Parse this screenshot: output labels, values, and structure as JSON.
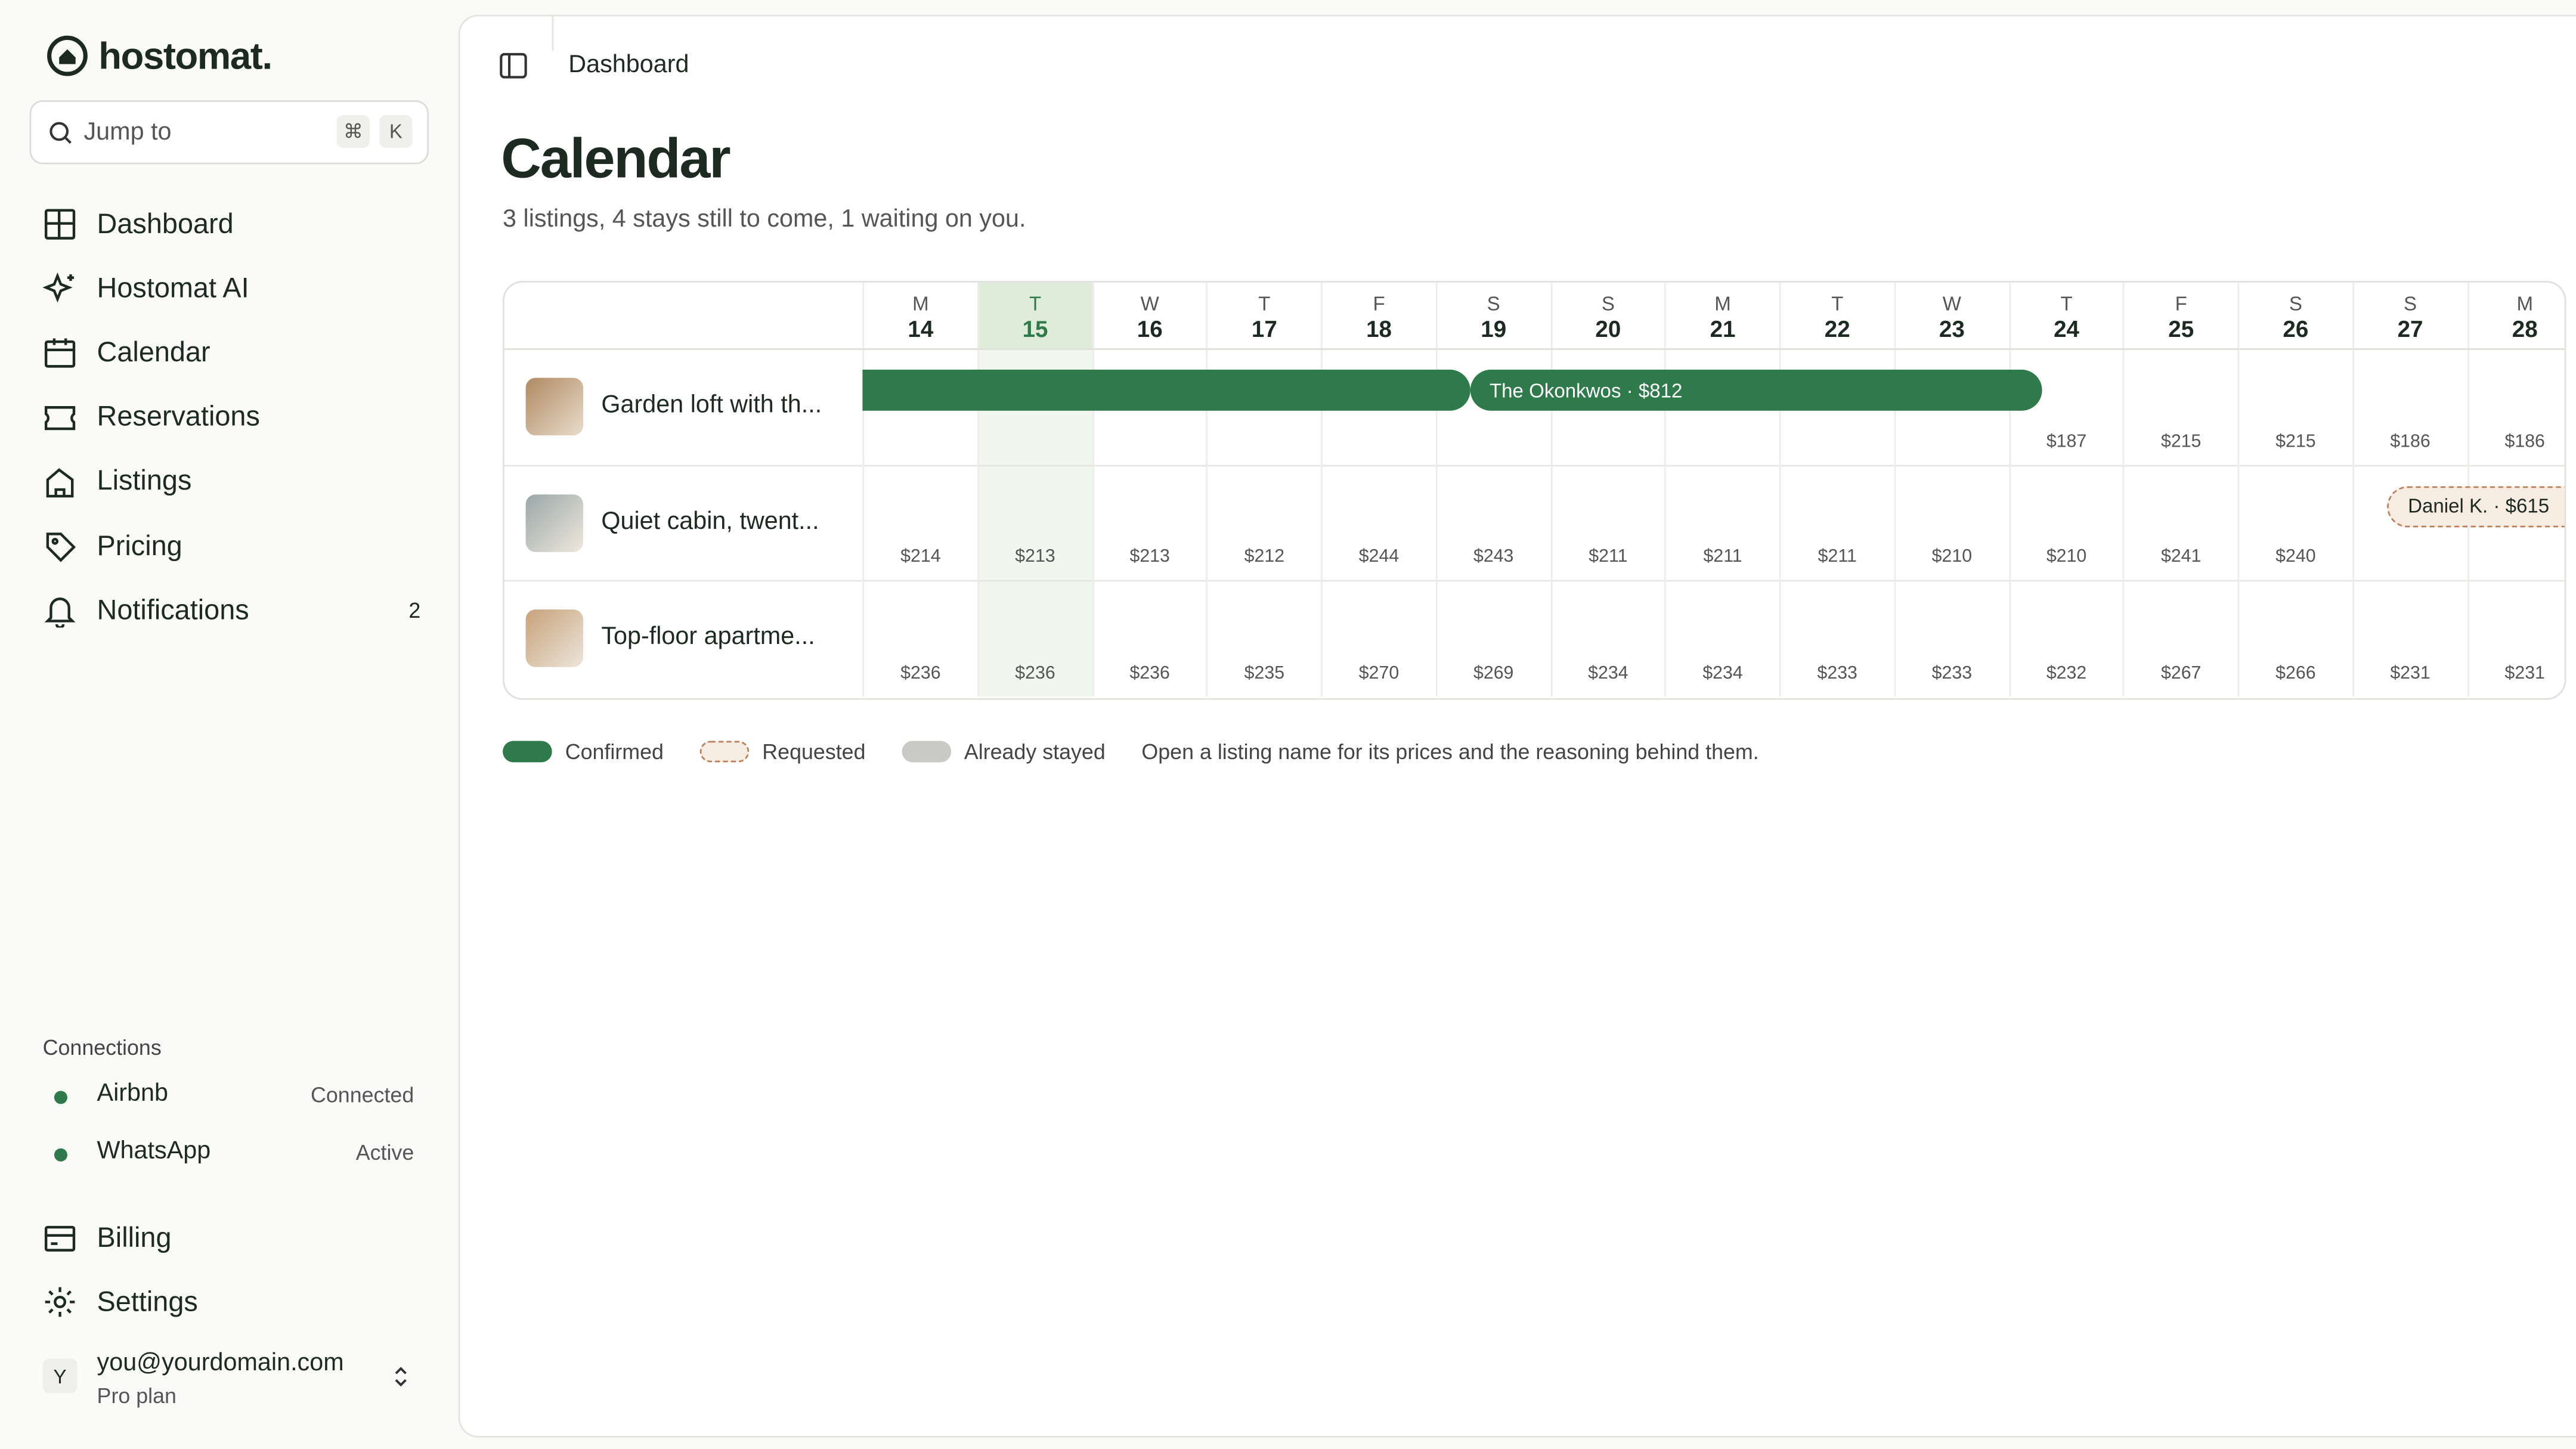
{
  "sidebar": {
    "brand": "hostomat.",
    "search": {
      "placeholder": "Jump to",
      "keys": [
        "⌘",
        "K"
      ]
    },
    "nav": [
      {
        "label": "Dashboard"
      },
      {
        "label": "Hostomat AI"
      },
      {
        "label": "Calendar"
      },
      {
        "label": "Reservations"
      },
      {
        "label": "Listings"
      },
      {
        "label": "Pricing"
      },
      {
        "label": "Notifications",
        "badge": "2"
      }
    ],
    "connections": {
      "title": "Connections",
      "items": [
        {
          "name": "Airbnb",
          "status": "Connected"
        },
        {
          "name": "WhatsApp",
          "status": "Active"
        }
      ]
    },
    "bottom_nav": [
      {
        "label": "Billing"
      },
      {
        "label": "Settings"
      }
    ],
    "user": {
      "avatar": "Y",
      "email": "you@yourdomain.com",
      "plan": "Pro plan"
    }
  },
  "header": {
    "breadcrumb": "Dashboard"
  },
  "page": {
    "title": "Calendar",
    "subtitle": "3 listings, 4 stays still to come, 1 waiting on you."
  },
  "calendar": {
    "days": [
      {
        "weekday": "M",
        "date": "14"
      },
      {
        "weekday": "T",
        "date": "15",
        "today": true
      },
      {
        "weekday": "W",
        "date": "16"
      },
      {
        "weekday": "T",
        "date": "17"
      },
      {
        "weekday": "F",
        "date": "18"
      },
      {
        "weekday": "S",
        "date": "19"
      },
      {
        "weekday": "S",
        "date": "20"
      },
      {
        "weekday": "M",
        "date": "21"
      },
      {
        "weekday": "T",
        "date": "22"
      },
      {
        "weekday": "W",
        "date": "23"
      },
      {
        "weekday": "T",
        "date": "24"
      },
      {
        "weekday": "F",
        "date": "25"
      },
      {
        "weekday": "S",
        "date": "26"
      },
      {
        "weekday": "S",
        "date": "27"
      },
      {
        "weekday": "M",
        "date": "28"
      }
    ],
    "listings": [
      {
        "name": "Garden loft with th...",
        "prices": [
          null,
          null,
          null,
          null,
          null,
          null,
          null,
          null,
          null,
          null,
          "$187",
          "$215",
          "$215",
          "$186",
          "$186"
        ],
        "bookings": [
          {
            "label": "The Okonkwos · $812",
            "status": "confirmed"
          }
        ]
      },
      {
        "name": "Quiet cabin, twent...",
        "prices": [
          "$214",
          "$213",
          "$213",
          "$212",
          "$244",
          "$243",
          "$211",
          "$211",
          "$211",
          "$210",
          "$210",
          "$241",
          "$240",
          null,
          null
        ],
        "bookings": [
          {
            "label": "Daniel K. · $615",
            "status": "requested"
          }
        ]
      },
      {
        "name": "Top-floor apartme...",
        "prices": [
          "$236",
          "$236",
          "$236",
          "$235",
          "$270",
          "$269",
          "$234",
          "$234",
          "$233",
          "$233",
          "$232",
          "$267",
          "$266",
          "$231",
          "$231"
        ],
        "bookings": []
      }
    ]
  },
  "legend": {
    "items": [
      "Confirmed",
      "Requested",
      "Already stayed"
    ],
    "note": "Open a listing name for its prices and the reasoning behind them."
  }
}
